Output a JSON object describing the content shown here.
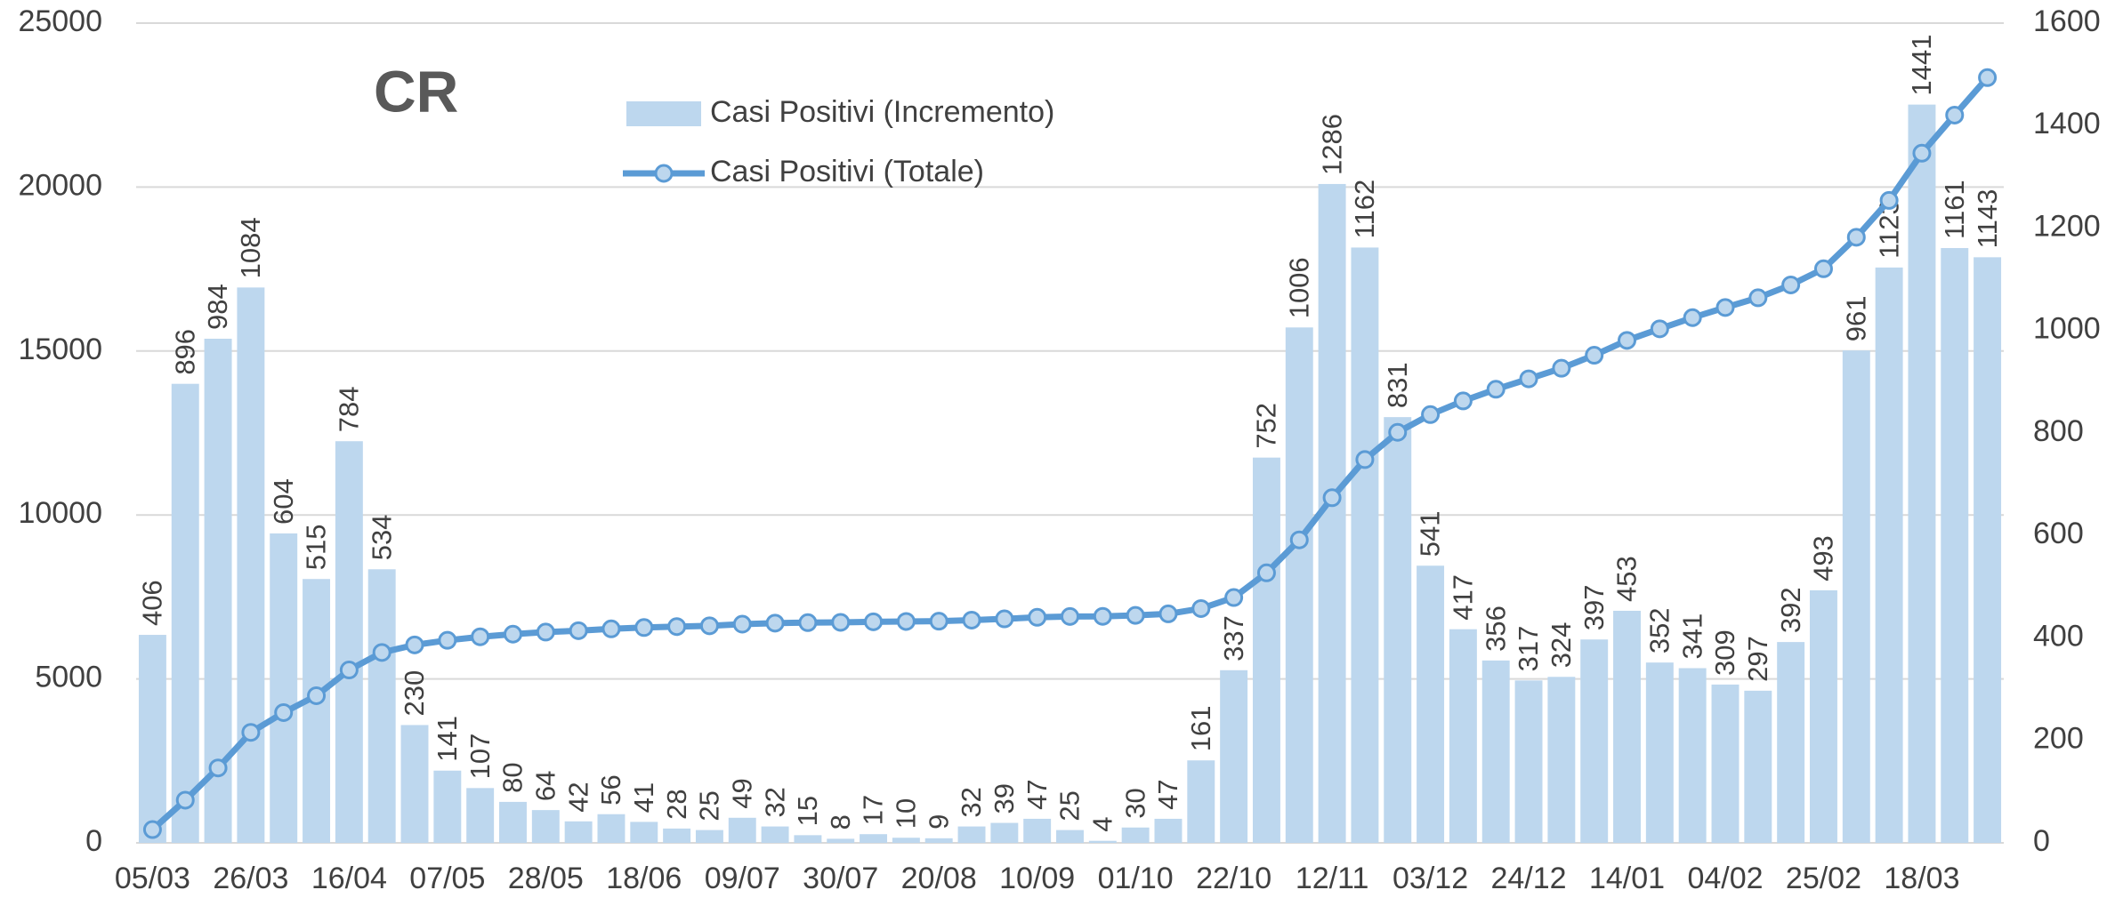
{
  "chart_data": {
    "type": "bar-line",
    "title": "CR",
    "categories": [
      "05/03",
      null,
      null,
      "26/03",
      null,
      null,
      "16/04",
      null,
      null,
      "07/05",
      null,
      null,
      "28/05",
      null,
      null,
      "18/06",
      null,
      null,
      "09/07",
      null,
      null,
      "30/07",
      null,
      null,
      "20/08",
      null,
      null,
      "10/09",
      null,
      null,
      "01/10",
      null,
      null,
      "22/10",
      null,
      null,
      "12/11",
      null,
      null,
      "03/12",
      null,
      null,
      "24/12",
      null,
      null,
      "14/01",
      null,
      null,
      "04/02",
      null,
      null,
      "25/02",
      null,
      null,
      "18/03",
      null,
      null
    ],
    "series": [
      {
        "name": "Casi Positivi (Incremento)",
        "type": "bar",
        "axis": "y2",
        "color": "#bdd7ee",
        "values": [
          406,
          896,
          984,
          1084,
          604,
          515,
          784,
          534,
          230,
          141,
          107,
          80,
          64,
          42,
          56,
          41,
          28,
          25,
          49,
          32,
          15,
          8,
          17,
          10,
          9,
          32,
          39,
          47,
          25,
          4,
          30,
          47,
          161,
          337,
          752,
          1006,
          1286,
          1162,
          831,
          541,
          417,
          356,
          317,
          324,
          397,
          453,
          352,
          341,
          309,
          297,
          392,
          493,
          961,
          1123,
          1441,
          1161,
          1143
        ]
      },
      {
        "name": "Casi Positivi (Totale)",
        "type": "line",
        "axis": "y",
        "color": "#5b9bd5",
        "marker_fill": "#bdd7ee",
        "values": [
          406,
          1302,
          2286,
          3370,
          3974,
          4489,
          5273,
          5807,
          6037,
          6178,
          6285,
          6365,
          6429,
          6471,
          6527,
          6568,
          6596,
          6621,
          6670,
          6702,
          6717,
          6725,
          6742,
          6752,
          6761,
          6793,
          6832,
          6879,
          6904,
          6908,
          6938,
          6985,
          7146,
          7483,
          8235,
          9241,
          10527,
          11689,
          12520,
          13061,
          13478,
          13834,
          14151,
          14475,
          14872,
          15325,
          15677,
          16018,
          16327,
          16624,
          17016,
          17509,
          18470,
          19593,
          21034,
          22195,
          23338
        ]
      }
    ],
    "ylim": [
      0,
      25000
    ],
    "yticks": [
      0,
      5000,
      10000,
      15000,
      20000,
      25000
    ],
    "y2lim": [
      0,
      1600
    ],
    "y2ticks": [
      0,
      200,
      400,
      600,
      800,
      1000,
      1200,
      1400,
      1600
    ],
    "grid": true
  }
}
